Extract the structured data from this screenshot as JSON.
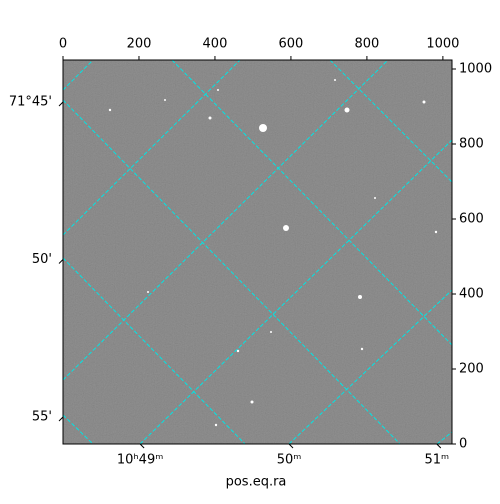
{
  "chart_data": {
    "type": "image",
    "xlabel": "pos.eq.ra",
    "xlim": [
      0,
      1024
    ],
    "xticks": [
      0,
      200,
      400,
      600,
      800,
      1000
    ],
    "ylim": [
      0,
      1024
    ],
    "yticks": [
      0,
      200,
      400,
      600,
      800,
      1000
    ],
    "world_xticks": [
      {
        "value": 203,
        "label": "10ʰ49ᵐ"
      },
      {
        "value": 595,
        "label": "50ᵐ"
      },
      {
        "value": 984,
        "label": "51ᵐ"
      }
    ],
    "world_yticks": [
      {
        "value": 912,
        "label": "71°45'"
      },
      {
        "value": 492,
        "label": "50'"
      },
      {
        "value": 72,
        "label": "55'"
      }
    ]
  }
}
